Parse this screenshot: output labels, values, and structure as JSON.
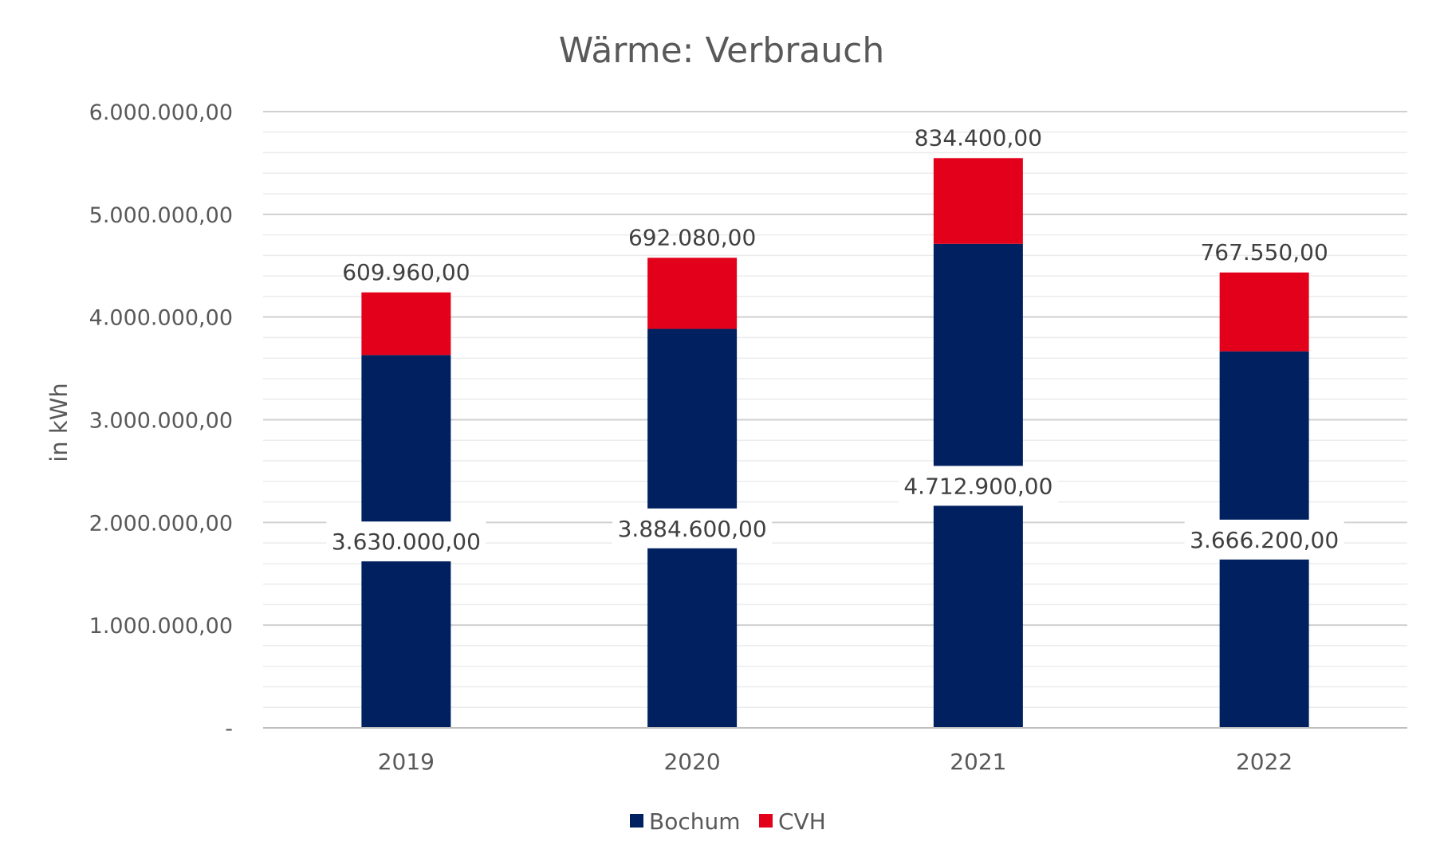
{
  "chart_data": {
    "type": "bar",
    "stacked": true,
    "title": "Wärme: Verbrauch",
    "xlabel": "",
    "ylabel": "in kWh",
    "categories": [
      "2019",
      "2020",
      "2021",
      "2022"
    ],
    "series": [
      {
        "name": "Bochum",
        "color": "#002060",
        "values": [
          3630000,
          3884600,
          4712900,
          3666200
        ],
        "labels": [
          "3.630.000,00",
          "3.884.600,00",
          "4.712.900,00",
          "3.666.200,00"
        ]
      },
      {
        "name": "CVH",
        "color": "#E2001A",
        "values": [
          609960,
          692080,
          834400,
          767550
        ],
        "labels": [
          "609.960,00",
          "692.080,00",
          "834.400,00",
          "767.550,00"
        ]
      }
    ],
    "ylim": [
      0,
      6000000
    ],
    "y_ticks": [
      0,
      1000000,
      2000000,
      3000000,
      4000000,
      5000000,
      6000000
    ],
    "y_tick_labels": [
      "-",
      "1.000.000,00",
      "2.000.000,00",
      "3.000.000,00",
      "4.000.000,00",
      "5.000.000,00",
      "6.000.000,00"
    ],
    "grid": true,
    "legend_position": "bottom"
  }
}
